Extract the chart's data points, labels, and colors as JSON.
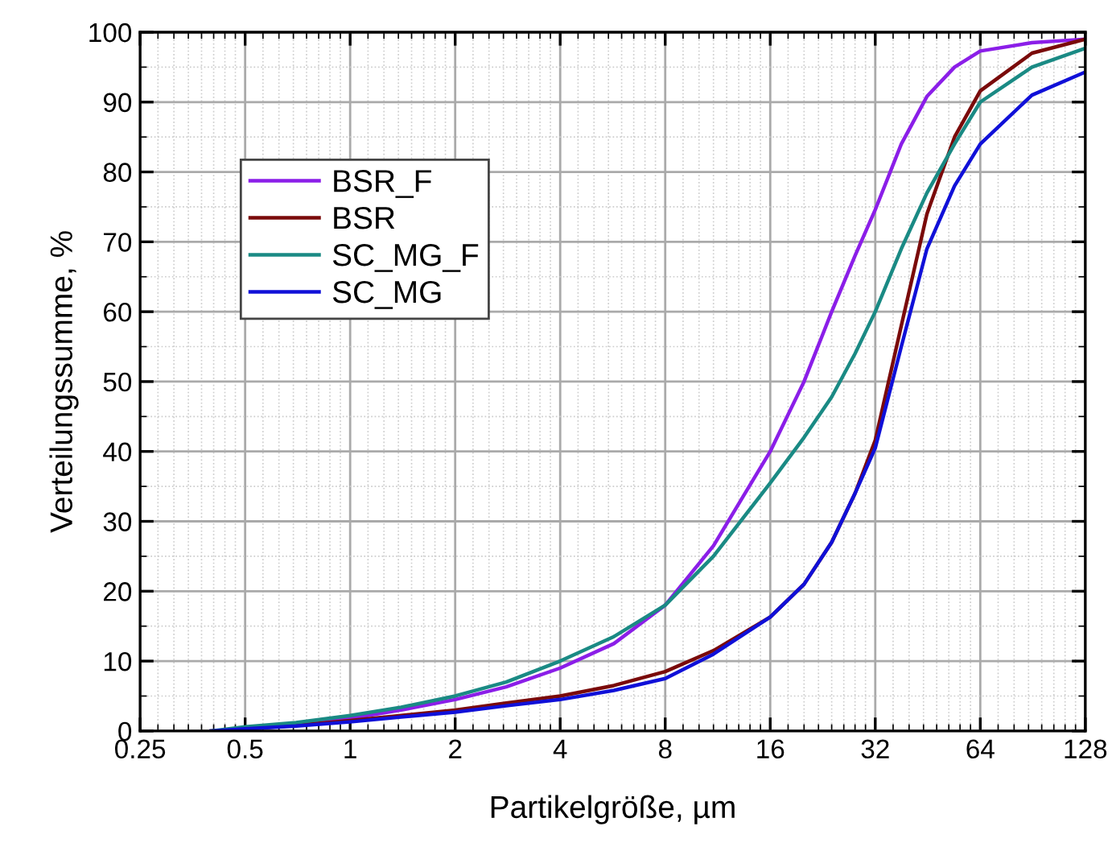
{
  "chart_data": {
    "type": "line",
    "xlabel": "Partikelgröße, µm",
    "ylabel": "Verteilungssumme, %",
    "log": "x",
    "grid": true,
    "legend": "top left",
    "marker": "none",
    "line_style": "solid",
    "xlim": [
      0.25,
      128
    ],
    "xticks": [
      0.25,
      0.5,
      1,
      2,
      4,
      8,
      16,
      32,
      64,
      128
    ],
    "ylim": [
      0,
      100
    ],
    "yticks": [
      0,
      10,
      20,
      30,
      40,
      50,
      60,
      70,
      80,
      90,
      100
    ],
    "series": [
      {
        "name": "BSR_F",
        "color": "#8b1ee8",
        "x": [
          0.7,
          1,
          1.4,
          2,
          2.8,
          4,
          5.7,
          8,
          11,
          16,
          20,
          24,
          28,
          32,
          38,
          45,
          54,
          64,
          90,
          128
        ],
        "values": [
          1,
          1.8,
          3,
          4.5,
          6.3,
          9,
          12.5,
          18,
          26.5,
          40,
          50,
          60,
          68,
          74.6,
          84,
          90.8,
          95,
          97.3,
          98.5,
          99
        ]
      },
      {
        "name": "BSR",
        "color": "#7a0a0a",
        "x": [
          0.4,
          0.5,
          0.7,
          1,
          1.4,
          2,
          2.8,
          4,
          5.7,
          8,
          11,
          16,
          20,
          24,
          28,
          32,
          38,
          45,
          54,
          64,
          90,
          128
        ],
        "values": [
          0,
          0.3,
          0.8,
          1.5,
          2.2,
          3,
          4,
          5,
          6.5,
          8.5,
          11.5,
          16.3,
          21,
          27,
          34,
          41.6,
          58,
          74,
          85,
          91.6,
          97,
          99
        ]
      },
      {
        "name": "SC_MG_F",
        "color": "#1a8a84",
        "x": [
          0.4,
          0.5,
          0.7,
          1,
          1.4,
          2,
          2.8,
          4,
          5.7,
          8,
          11,
          16,
          20,
          24,
          28,
          32,
          38,
          45,
          54,
          64,
          90,
          128
        ],
        "values": [
          0,
          0.6,
          1.2,
          2.2,
          3.4,
          5,
          7,
          10,
          13.5,
          18,
          25,
          35.5,
          42,
          47.8,
          54,
          60,
          69,
          77,
          84,
          90,
          95,
          97.7
        ]
      },
      {
        "name": "SC_MG",
        "color": "#1010d8",
        "x": [
          0.4,
          0.5,
          0.7,
          1,
          1.4,
          2,
          2.8,
          4,
          5.7,
          8,
          11,
          16,
          20,
          24,
          28,
          32,
          38,
          45,
          54,
          64,
          90,
          128
        ],
        "values": [
          0,
          0.3,
          0.7,
          1.3,
          2,
          2.7,
          3.6,
          4.5,
          5.8,
          7.5,
          11,
          16.3,
          21,
          27,
          34,
          40.5,
          55,
          69,
          78,
          84,
          91,
          94.3
        ]
      }
    ]
  }
}
